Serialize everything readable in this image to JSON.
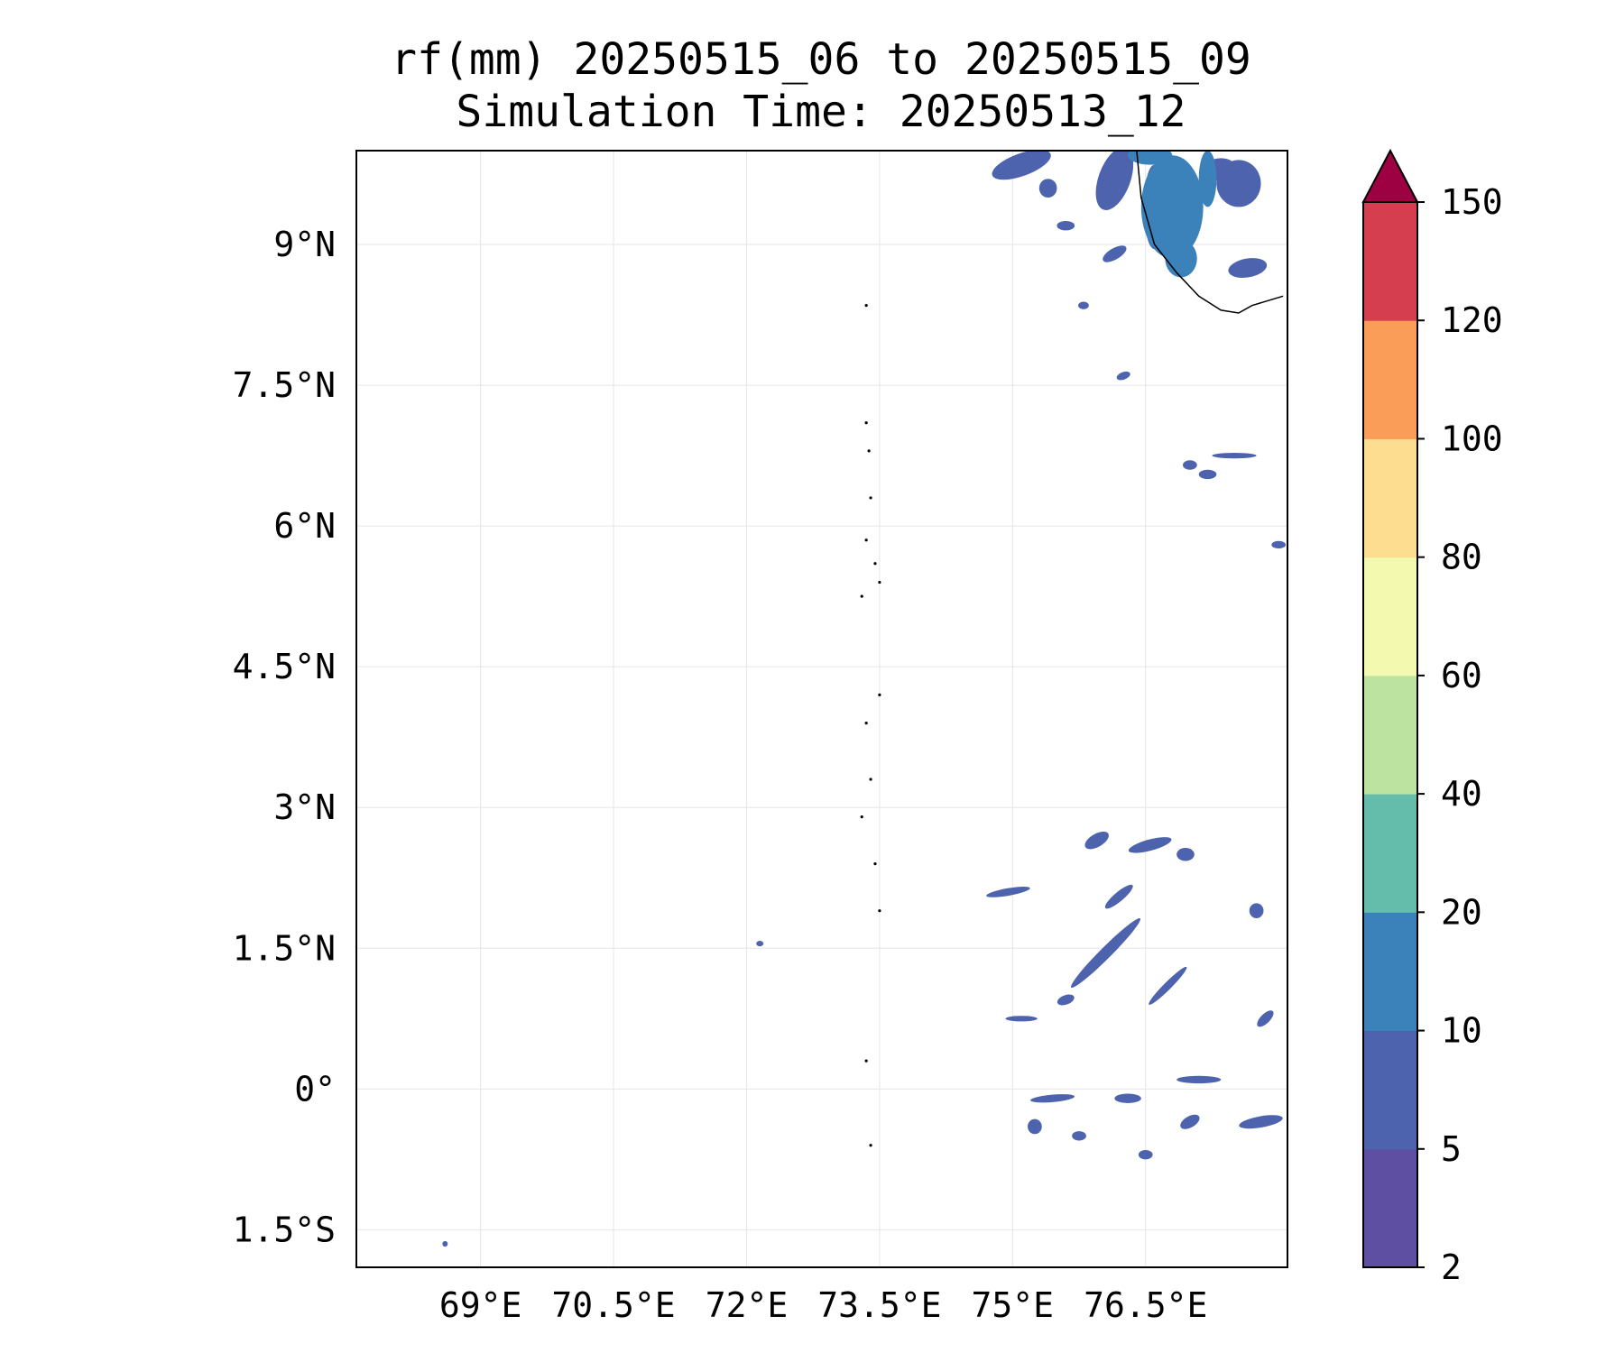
{
  "figure": {
    "title_line1": "rf(mm) 20250515_06 to 20250515_09",
    "title_line2": "Simulation Time: 20250513_12"
  },
  "map": {
    "lon_range": [
      67.6,
      78.1
    ],
    "lat_range": [
      -1.9,
      10.0
    ],
    "lon_ticks": [
      {
        "value": 69.0,
        "label": "69°E"
      },
      {
        "value": 70.5,
        "label": "70.5°E"
      },
      {
        "value": 72.0,
        "label": "72°E"
      },
      {
        "value": 73.5,
        "label": "73.5°E"
      },
      {
        "value": 75.0,
        "label": "75°E"
      },
      {
        "value": 76.5,
        "label": "76.5°E"
      }
    ],
    "lat_ticks": [
      {
        "value": 9.0,
        "label": "9°N"
      },
      {
        "value": 7.5,
        "label": "7.5°N"
      },
      {
        "value": 6.0,
        "label": "6°N"
      },
      {
        "value": 4.5,
        "label": "4.5°N"
      },
      {
        "value": 3.0,
        "label": "3°N"
      },
      {
        "value": 1.5,
        "label": "1.5°N"
      },
      {
        "value": 0.0,
        "label": "0°"
      },
      {
        "value": -1.5,
        "label": "1.5°S"
      }
    ],
    "gridlines": true,
    "coastline_india": [
      [
        76.4,
        10.0
      ],
      [
        76.45,
        9.5
      ],
      [
        76.6,
        9.0
      ],
      [
        76.85,
        8.7
      ],
      [
        77.1,
        8.45
      ],
      [
        77.35,
        8.3
      ],
      [
        77.55,
        8.27
      ],
      [
        77.7,
        8.35
      ],
      [
        78.05,
        8.45
      ]
    ],
    "atolls": [
      {
        "lon": 73.35,
        "lat": 7.1
      },
      {
        "lon": 73.38,
        "lat": 6.8
      },
      {
        "lon": 73.4,
        "lat": 6.3
      },
      {
        "lon": 73.35,
        "lat": 5.85
      },
      {
        "lon": 73.45,
        "lat": 5.6
      },
      {
        "lon": 73.5,
        "lat": 5.4
      },
      {
        "lon": 73.3,
        "lat": 5.25
      },
      {
        "lon": 73.5,
        "lat": 4.2
      },
      {
        "lon": 73.35,
        "lat": 3.9
      },
      {
        "lon": 73.4,
        "lat": 3.3
      },
      {
        "lon": 73.3,
        "lat": 2.9
      },
      {
        "lon": 73.45,
        "lat": 2.4
      },
      {
        "lon": 73.5,
        "lat": 1.9
      },
      {
        "lon": 73.35,
        "lat": 0.3
      },
      {
        "lon": 73.4,
        "lat": -0.6
      },
      {
        "lon": 73.35,
        "lat": 8.35
      }
    ],
    "rain_patches": [
      {
        "lon": 75.1,
        "lat": 9.85,
        "rx": 0.35,
        "ry": 0.12,
        "rot": 20,
        "v": 5
      },
      {
        "lon": 75.4,
        "lat": 9.6,
        "rx": 0.1,
        "ry": 0.1,
        "rot": 0,
        "v": 5
      },
      {
        "lon": 76.15,
        "lat": 9.7,
        "rx": 0.18,
        "ry": 0.35,
        "rot": -20,
        "v": 5
      },
      {
        "lon": 76.6,
        "lat": 9.4,
        "rx": 0.12,
        "ry": 0.45,
        "rot": 0,
        "v": 5
      },
      {
        "lon": 77.55,
        "lat": 9.65,
        "rx": 0.25,
        "ry": 0.25,
        "rot": 0,
        "v": 5
      },
      {
        "lon": 77.35,
        "lat": 9.8,
        "rx": 0.18,
        "ry": 0.12,
        "rot": 0,
        "v": 5
      },
      {
        "lon": 77.65,
        "lat": 8.75,
        "rx": 0.22,
        "ry": 0.1,
        "rot": 10,
        "v": 5
      },
      {
        "lon": 76.15,
        "lat": 8.9,
        "rx": 0.15,
        "ry": 0.06,
        "rot": 30,
        "v": 5
      },
      {
        "lon": 75.6,
        "lat": 9.2,
        "rx": 0.1,
        "ry": 0.05,
        "rot": 0,
        "v": 5
      },
      {
        "lon": 76.8,
        "lat": 9.4,
        "rx": 0.35,
        "ry": 0.55,
        "rot": 0,
        "v": 15
      },
      {
        "lon": 76.9,
        "lat": 8.85,
        "rx": 0.18,
        "ry": 0.2,
        "rot": 0,
        "v": 15
      },
      {
        "lon": 77.2,
        "lat": 9.7,
        "rx": 0.1,
        "ry": 0.3,
        "rot": 0,
        "v": 15
      },
      {
        "lon": 76.55,
        "lat": 9.95,
        "rx": 0.25,
        "ry": 0.1,
        "rot": 0,
        "v": 15
      },
      {
        "lon": 76.25,
        "lat": 7.6,
        "rx": 0.08,
        "ry": 0.04,
        "rot": 20,
        "v": 5
      },
      {
        "lon": 75.8,
        "lat": 8.35,
        "rx": 0.06,
        "ry": 0.04,
        "rot": 0,
        "v": 5
      },
      {
        "lon": 77.0,
        "lat": 6.65,
        "rx": 0.08,
        "ry": 0.05,
        "rot": 0,
        "v": 5
      },
      {
        "lon": 77.2,
        "lat": 6.55,
        "rx": 0.1,
        "ry": 0.05,
        "rot": 0,
        "v": 5
      },
      {
        "lon": 77.5,
        "lat": 6.75,
        "rx": 0.25,
        "ry": 0.03,
        "rot": 0,
        "v": 5
      },
      {
        "lon": 78.0,
        "lat": 5.8,
        "rx": 0.08,
        "ry": 0.04,
        "rot": 0,
        "v": 5
      },
      {
        "lon": 75.95,
        "lat": 2.65,
        "rx": 0.15,
        "ry": 0.07,
        "rot": 30,
        "v": 5
      },
      {
        "lon": 76.55,
        "lat": 2.6,
        "rx": 0.25,
        "ry": 0.06,
        "rot": 15,
        "v": 5
      },
      {
        "lon": 76.95,
        "lat": 2.5,
        "rx": 0.1,
        "ry": 0.07,
        "rot": 0,
        "v": 5
      },
      {
        "lon": 74.95,
        "lat": 2.1,
        "rx": 0.25,
        "ry": 0.04,
        "rot": 10,
        "v": 5
      },
      {
        "lon": 76.2,
        "lat": 2.05,
        "rx": 0.2,
        "ry": 0.05,
        "rot": 40,
        "v": 5
      },
      {
        "lon": 76.05,
        "lat": 1.45,
        "rx": 0.55,
        "ry": 0.06,
        "rot": 45,
        "v": 5
      },
      {
        "lon": 76.75,
        "lat": 1.1,
        "rx": 0.3,
        "ry": 0.04,
        "rot": 45,
        "v": 5
      },
      {
        "lon": 75.1,
        "lat": 0.75,
        "rx": 0.18,
        "ry": 0.03,
        "rot": 0,
        "v": 5
      },
      {
        "lon": 75.6,
        "lat": 0.95,
        "rx": 0.1,
        "ry": 0.05,
        "rot": 20,
        "v": 5
      },
      {
        "lon": 75.45,
        "lat": -0.1,
        "rx": 0.25,
        "ry": 0.04,
        "rot": 5,
        "v": 5
      },
      {
        "lon": 76.3,
        "lat": -0.1,
        "rx": 0.15,
        "ry": 0.05,
        "rot": 0,
        "v": 5
      },
      {
        "lon": 77.1,
        "lat": 0.1,
        "rx": 0.25,
        "ry": 0.04,
        "rot": 0,
        "v": 5
      },
      {
        "lon": 77.8,
        "lat": -0.35,
        "rx": 0.25,
        "ry": 0.06,
        "rot": 10,
        "v": 5
      },
      {
        "lon": 77.0,
        "lat": -0.35,
        "rx": 0.12,
        "ry": 0.06,
        "rot": 30,
        "v": 5
      },
      {
        "lon": 75.25,
        "lat": -0.4,
        "rx": 0.08,
        "ry": 0.08,
        "rot": 0,
        "v": 5
      },
      {
        "lon": 76.5,
        "lat": -0.7,
        "rx": 0.08,
        "ry": 0.05,
        "rot": 0,
        "v": 5
      },
      {
        "lon": 75.75,
        "lat": -0.5,
        "rx": 0.08,
        "ry": 0.05,
        "rot": 0,
        "v": 5
      },
      {
        "lon": 77.75,
        "lat": 1.9,
        "rx": 0.08,
        "ry": 0.08,
        "rot": 0,
        "v": 5
      },
      {
        "lon": 77.85,
        "lat": 0.75,
        "rx": 0.12,
        "ry": 0.05,
        "rot": 45,
        "v": 5
      },
      {
        "lon": 72.15,
        "lat": 1.55,
        "rx": 0.04,
        "ry": 0.03,
        "rot": 0,
        "v": 5
      },
      {
        "lon": 68.6,
        "lat": -1.65,
        "rx": 0.03,
        "ry": 0.03,
        "rot": 0,
        "v": 5
      }
    ]
  },
  "colorbar": {
    "levels": [
      2,
      5,
      10,
      20,
      40,
      60,
      80,
      100,
      120,
      150
    ],
    "tick_labels": [
      "2",
      "5",
      "10",
      "20",
      "40",
      "60",
      "80",
      "100",
      "120",
      "150"
    ],
    "colors": [
      "#5e4fa2",
      "#4d63ad",
      "#3b82bb",
      "#63bdaa",
      "#bce4a0",
      "#f3f9ae",
      "#fddd8f",
      "#f99d59",
      "#d53e4f"
    ],
    "extend_color": "#9e0142",
    "extend": "max"
  }
}
